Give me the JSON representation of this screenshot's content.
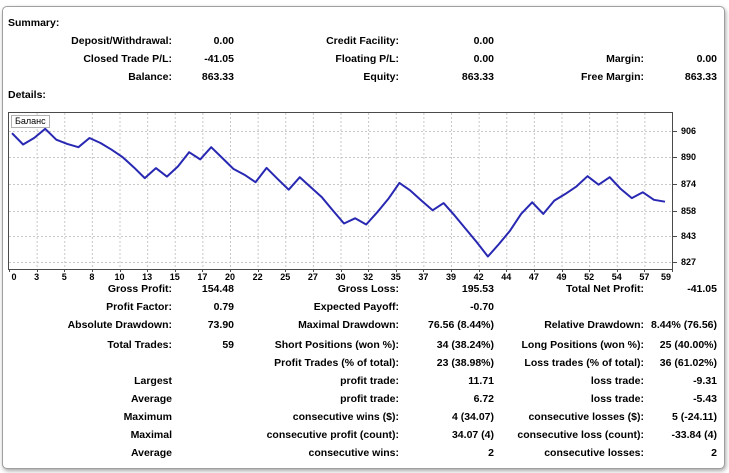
{
  "summary": {
    "title": "Summary:",
    "rows": [
      {
        "cells": [
          "Deposit/Withdrawal:",
          "0.00",
          "Credit Facility:",
          "0.00",
          "",
          ""
        ]
      },
      {
        "cells": [
          "Closed Trade P/L:",
          "-41.05",
          "Floating P/L:",
          "0.00",
          "Margin:",
          "0.00"
        ]
      },
      {
        "cells": [
          "Balance:",
          "863.33",
          "Equity:",
          "863.33",
          "Free Margin:",
          "863.33"
        ]
      }
    ]
  },
  "details": {
    "title": "Details:",
    "rows": [
      {
        "cells": [
          "Gross Profit:",
          "154.48",
          "Gross Loss:",
          "195.53",
          "Total Net Profit:",
          "-41.05"
        ]
      },
      {
        "cells": [
          "Profit Factor:",
          "0.79",
          "Expected Payoff:",
          "-0.70",
          "",
          ""
        ]
      },
      {
        "cells": [
          "Absolute Drawdown:",
          "73.90",
          "Maximal Drawdown:",
          "76.56 (8.44%)",
          "Relative Drawdown:",
          "8.44% (76.56)"
        ]
      },
      {
        "gap_before": true,
        "cells": [
          "Total Trades:",
          "59",
          "Short Positions (won %):",
          "34 (38.24%)",
          "Long Positions (won %):",
          "25 (40.00%)"
        ]
      },
      {
        "cells": [
          "",
          "",
          "Profit Trades (% of total):",
          "23 (38.98%)",
          "Loss trades (% of total):",
          "36 (61.02%)"
        ]
      },
      {
        "cells": [
          "Largest",
          "",
          "profit trade:",
          "11.71",
          "loss trade:",
          "-9.31"
        ]
      },
      {
        "cells": [
          "Average",
          "",
          "profit trade:",
          "6.72",
          "loss trade:",
          "-5.43"
        ]
      },
      {
        "cells": [
          "Maximum",
          "",
          "consecutive wins ($):",
          "4 (34.07)",
          "consecutive losses ($):",
          "5 (-24.11)"
        ]
      },
      {
        "cells": [
          "Maximal",
          "",
          "consecutive profit (count):",
          "34.07 (4)",
          "consecutive loss (count):",
          "-33.84 (4)"
        ]
      },
      {
        "cells": [
          "Average",
          "",
          "consecutive wins:",
          "2",
          "consecutive losses:",
          "2"
        ]
      }
    ]
  },
  "chart_data": {
    "type": "line",
    "title": "Баланс",
    "series_name": "Balance",
    "x_is_trade_index": true,
    "xlim": [
      0,
      59
    ],
    "ylim": [
      823,
      916.5
    ],
    "x_ticks": [
      0,
      3,
      5,
      8,
      10,
      13,
      15,
      17,
      20,
      22,
      25,
      27,
      30,
      32,
      35,
      37,
      39,
      42,
      44,
      47,
      49,
      52,
      54,
      57,
      59
    ],
    "y_ticks": [
      906,
      890,
      874,
      858,
      843,
      827
    ],
    "values": [
      904.38,
      897.6,
      901.5,
      907.04,
      900.5,
      898.0,
      896.0,
      901.5,
      898.5,
      894.5,
      890.0,
      884.0,
      877.5,
      883.5,
      878.4,
      884.5,
      893.0,
      888.7,
      896.0,
      889.5,
      883.0,
      879.5,
      875.0,
      883.6,
      877.0,
      870.5,
      878.0,
      872.0,
      866.0,
      858.0,
      850.3,
      853.4,
      849.7,
      857.0,
      865.0,
      874.6,
      870.0,
      864.0,
      858.2,
      862.5,
      855.0,
      847.0,
      839.0,
      830.48,
      838.0,
      846.0,
      856.0,
      863.0,
      856.0,
      864.0,
      868.0,
      872.5,
      878.6,
      873.5,
      878.0,
      871.0,
      865.5,
      869.0,
      864.5,
      863.33
    ],
    "grid": true,
    "grid_color": "#c8c8c8",
    "line_color": "#2828b2",
    "legend_position": "top-left"
  }
}
